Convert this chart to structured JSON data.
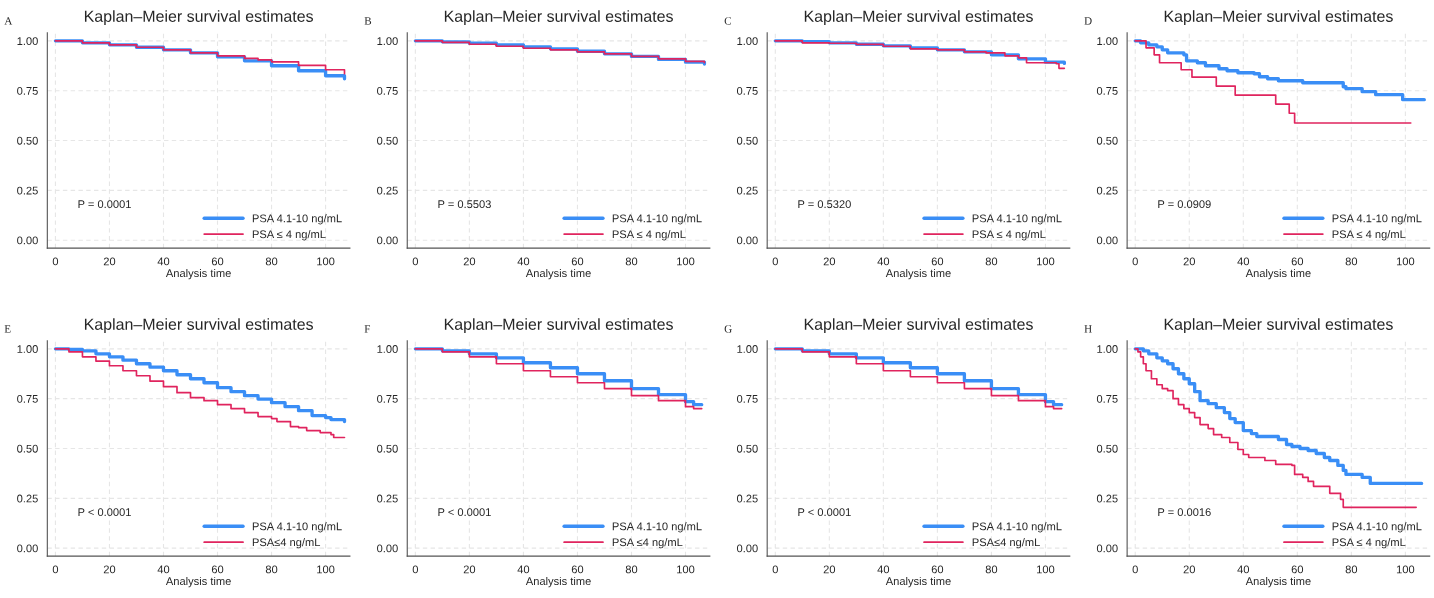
{
  "chart_data": [
    {
      "type": "step",
      "title": "Kaplan–Meier survival estimates",
      "xlabel": "Analysis time",
      "annotations": [
        "A",
        "P = 0.0001"
      ],
      "xlim": [
        -3,
        109
      ],
      "ylim": [
        -0.04,
        1.04
      ],
      "xticks": [
        0,
        20,
        40,
        60,
        80,
        100
      ],
      "yticks": [
        {
          "value": 0,
          "label": "0.00"
        },
        {
          "value": 0.25,
          "label": "0.25"
        },
        {
          "value": 0.5,
          "label": "0.50"
        },
        {
          "value": 0.75,
          "label": "0.75"
        },
        {
          "value": 1,
          "label": "1.00"
        }
      ],
      "grid": true,
      "legend": "bottom right",
      "series": [
        {
          "name": "PSA 4.1-10 ng/mL",
          "color": "#3a8ef6",
          "x": [
            0,
            10,
            20,
            30,
            40,
            50,
            60,
            70,
            80,
            90,
            100,
            107
          ],
          "values": [
            1,
            0.99,
            0.98,
            0.968,
            0.955,
            0.94,
            0.92,
            0.9,
            0.875,
            0.85,
            0.825,
            0.81
          ]
        },
        {
          "name": "PSA ≤ 4 ng/mL",
          "color": "#e0245e",
          "x": [
            0,
            10,
            20,
            30,
            40,
            50,
            60,
            70,
            75,
            80,
            90,
            100,
            107
          ],
          "values": [
            1,
            0.99,
            0.98,
            0.968,
            0.955,
            0.94,
            0.925,
            0.912,
            0.905,
            0.895,
            0.877,
            0.855,
            0.835
          ]
        }
      ]
    },
    {
      "type": "step",
      "title": "Kaplan–Meier survival estimates",
      "xlabel": "Analysis time",
      "annotations": [
        "B",
        "P = 0.5503"
      ],
      "xlim": [
        -3,
        109
      ],
      "ylim": [
        -0.04,
        1.04
      ],
      "xticks": [
        0,
        20,
        40,
        60,
        80,
        100
      ],
      "yticks": [
        {
          "value": 0,
          "label": "0.00"
        },
        {
          "value": 0.25,
          "label": "0.25"
        },
        {
          "value": 0.5,
          "label": "0.50"
        },
        {
          "value": 0.75,
          "label": "0.75"
        },
        {
          "value": 1,
          "label": "1.00"
        }
      ],
      "grid": true,
      "legend": "bottom right",
      "series": [
        {
          "name": "PSA 4.1-10 ng/mL",
          "color": "#3a8ef6",
          "x": [
            0,
            10,
            20,
            30,
            40,
            50,
            60,
            70,
            80,
            90,
            100,
            107
          ],
          "values": [
            1,
            0.995,
            0.988,
            0.98,
            0.97,
            0.96,
            0.948,
            0.935,
            0.922,
            0.907,
            0.893,
            0.884
          ]
        },
        {
          "name": "PSA ≤ 4 ng/mL",
          "color": "#e0245e",
          "x": [
            0,
            10,
            20,
            30,
            40,
            50,
            60,
            70,
            80,
            90,
            100,
            107
          ],
          "values": [
            1,
            0.992,
            0.983,
            0.973,
            0.963,
            0.955,
            0.945,
            0.935,
            0.922,
            0.91,
            0.897,
            0.89
          ]
        }
      ]
    },
    {
      "type": "step",
      "title": "Kaplan–Meier survival estimates",
      "xlabel": "Analysis time",
      "annotations": [
        "C",
        "P = 0.5320"
      ],
      "xlim": [
        -3,
        109
      ],
      "ylim": [
        -0.04,
        1.04
      ],
      "xticks": [
        0,
        20,
        40,
        60,
        80,
        100
      ],
      "yticks": [
        {
          "value": 0,
          "label": "0.00"
        },
        {
          "value": 0.25,
          "label": "0.25"
        },
        {
          "value": 0.5,
          "label": "0.50"
        },
        {
          "value": 0.75,
          "label": "0.75"
        },
        {
          "value": 1,
          "label": "1.00"
        }
      ],
      "grid": true,
      "legend": "bottom right",
      "series": [
        {
          "name": "PSA 4.1-10 ng/mL",
          "color": "#3a8ef6",
          "x": [
            0,
            10,
            20,
            30,
            40,
            50,
            60,
            70,
            80,
            90,
            100,
            107
          ],
          "values": [
            1,
            0.996,
            0.99,
            0.983,
            0.975,
            0.965,
            0.955,
            0.945,
            0.93,
            0.91,
            0.893,
            0.887
          ]
        },
        {
          "name": "PSA ≤ 4 ng/mL",
          "color": "#e0245e",
          "x": [
            0,
            10,
            20,
            30,
            40,
            50,
            60,
            70,
            78,
            85,
            90,
            93,
            100,
            104,
            105,
            107
          ],
          "values": [
            1,
            0.99,
            0.988,
            0.982,
            0.973,
            0.96,
            0.955,
            0.945,
            0.94,
            0.925,
            0.915,
            0.89,
            0.89,
            0.885,
            0.862,
            0.862
          ]
        }
      ]
    },
    {
      "type": "step",
      "title": "Kaplan–Meier survival estimates",
      "xlabel": "Analysis time",
      "annotations": [
        "D",
        "P = 0.0909"
      ],
      "xlim": [
        -3,
        109
      ],
      "ylim": [
        -0.04,
        1.04
      ],
      "xticks": [
        0,
        20,
        40,
        60,
        80,
        100
      ],
      "yticks": [
        {
          "value": 0,
          "label": "0.00"
        },
        {
          "value": 0.25,
          "label": "0.25"
        },
        {
          "value": 0.5,
          "label": "0.50"
        },
        {
          "value": 0.75,
          "label": "0.75"
        },
        {
          "value": 1,
          "label": "1.00"
        }
      ],
      "grid": true,
      "legend": "bottom right",
      "series": [
        {
          "name": "PSA 4.1-10 ng/mL",
          "color": "#3a8ef6",
          "x": [
            0,
            2,
            5,
            8,
            10,
            12,
            18,
            19,
            23,
            26,
            31,
            34,
            38,
            44,
            46,
            49,
            53,
            62,
            77,
            78,
            84,
            89,
            99,
            107
          ],
          "values": [
            1,
            0.99,
            0.98,
            0.97,
            0.955,
            0.94,
            0.93,
            0.9,
            0.89,
            0.875,
            0.86,
            0.85,
            0.84,
            0.835,
            0.82,
            0.81,
            0.8,
            0.79,
            0.77,
            0.76,
            0.745,
            0.73,
            0.705,
            0.705
          ]
        },
        {
          "name": "PSA ≤ 4 ng/mL",
          "color": "#e0245e",
          "x": [
            0,
            4,
            7,
            9,
            17,
            21,
            30,
            37,
            52,
            57,
            59,
            102
          ],
          "values": [
            1,
            0.965,
            0.93,
            0.89,
            0.855,
            0.818,
            0.773,
            0.728,
            0.683,
            0.637,
            0.588,
            0.588
          ]
        }
      ]
    },
    {
      "type": "step",
      "title": "Kaplan–Meier survival estimates",
      "xlabel": "Analysis time",
      "annotations": [
        "E",
        "P < 0.0001"
      ],
      "xlim": [
        -3,
        109
      ],
      "ylim": [
        -0.04,
        1.04
      ],
      "xticks": [
        0,
        20,
        40,
        60,
        80,
        100
      ],
      "yticks": [
        {
          "value": 0,
          "label": "0.00"
        },
        {
          "value": 0.25,
          "label": "0.25"
        },
        {
          "value": 0.5,
          "label": "0.50"
        },
        {
          "value": 0.75,
          "label": "0.75"
        },
        {
          "value": 1,
          "label": "1.00"
        }
      ],
      "grid": true,
      "legend": "bottom right",
      "series": [
        {
          "name": "PSA 4.1-10 ng/mL",
          "color": "#3a8ef6",
          "x": [
            0,
            5,
            10,
            15,
            20,
            25,
            30,
            35,
            40,
            45,
            50,
            55,
            60,
            65,
            70,
            75,
            80,
            85,
            90,
            95,
            100,
            102,
            105,
            107
          ],
          "values": [
            1,
            0.997,
            0.99,
            0.975,
            0.96,
            0.943,
            0.925,
            0.908,
            0.89,
            0.87,
            0.85,
            0.83,
            0.805,
            0.785,
            0.765,
            0.748,
            0.73,
            0.71,
            0.69,
            0.665,
            0.655,
            0.645,
            0.645,
            0.635
          ]
        },
        {
          "name": "PSA≤4 ng/mL",
          "color": "#e0245e",
          "x": [
            0,
            5,
            10,
            15,
            20,
            25,
            30,
            35,
            40,
            45,
            50,
            55,
            60,
            65,
            70,
            75,
            80,
            82,
            87,
            90,
            93,
            98,
            102,
            103,
            107
          ],
          "values": [
            1,
            0.985,
            0.96,
            0.938,
            0.915,
            0.89,
            0.865,
            0.838,
            0.81,
            0.78,
            0.755,
            0.74,
            0.72,
            0.7,
            0.68,
            0.66,
            0.65,
            0.635,
            0.61,
            0.605,
            0.59,
            0.58,
            0.57,
            0.555,
            0.555
          ]
        }
      ]
    },
    {
      "type": "step",
      "title": "Kaplan–Meier survival estimates",
      "xlabel": "Analysis time",
      "annotations": [
        "F",
        "P < 0.0001"
      ],
      "xlim": [
        -3,
        109
      ],
      "ylim": [
        -0.04,
        1.04
      ],
      "xticks": [
        0,
        20,
        40,
        60,
        80,
        100
      ],
      "yticks": [
        {
          "value": 0,
          "label": "0.00"
        },
        {
          "value": 0.25,
          "label": "0.25"
        },
        {
          "value": 0.5,
          "label": "0.50"
        },
        {
          "value": 0.75,
          "label": "0.75"
        },
        {
          "value": 1,
          "label": "1.00"
        }
      ],
      "grid": true,
      "legend": "bottom right",
      "series": [
        {
          "name": "PSA 4.1-10 ng/mL",
          "color": "#3a8ef6",
          "x": [
            0,
            10,
            20,
            30,
            40,
            50,
            60,
            70,
            80,
            90,
            100,
            103,
            106
          ],
          "values": [
            1,
            0.99,
            0.975,
            0.955,
            0.93,
            0.905,
            0.875,
            0.84,
            0.8,
            0.77,
            0.735,
            0.72,
            0.72
          ]
        },
        {
          "name": "PSA ≤4 ng/mL",
          "color": "#e0245e",
          "x": [
            0,
            10,
            20,
            30,
            40,
            50,
            60,
            70,
            80,
            90,
            100,
            103,
            106
          ],
          "values": [
            1,
            0.985,
            0.96,
            0.925,
            0.89,
            0.86,
            0.83,
            0.8,
            0.765,
            0.74,
            0.71,
            0.7,
            0.7
          ]
        }
      ]
    },
    {
      "type": "step",
      "title": "Kaplan–Meier survival estimates",
      "xlabel": "Analysis time",
      "annotations": [
        "G",
        "P < 0.0001"
      ],
      "xlim": [
        -3,
        109
      ],
      "ylim": [
        -0.04,
        1.04
      ],
      "xticks": [
        0,
        20,
        40,
        60,
        80,
        100
      ],
      "yticks": [
        {
          "value": 0,
          "label": "0.00"
        },
        {
          "value": 0.25,
          "label": "0.25"
        },
        {
          "value": 0.5,
          "label": "0.50"
        },
        {
          "value": 0.75,
          "label": "0.75"
        },
        {
          "value": 1,
          "label": "1.00"
        }
      ],
      "grid": true,
      "legend": "bottom right",
      "series": [
        {
          "name": "PSA 4.1-10 ng/mL",
          "color": "#3a8ef6",
          "x": [
            0,
            10,
            20,
            30,
            40,
            50,
            60,
            70,
            80,
            90,
            100,
            103,
            106
          ],
          "values": [
            1,
            0.99,
            0.975,
            0.955,
            0.93,
            0.905,
            0.875,
            0.84,
            0.8,
            0.77,
            0.735,
            0.72,
            0.72
          ]
        },
        {
          "name": "PSA≤4 ng/mL",
          "color": "#e0245e",
          "x": [
            0,
            10,
            20,
            30,
            40,
            50,
            60,
            70,
            80,
            90,
            100,
            103,
            106
          ],
          "values": [
            1,
            0.985,
            0.96,
            0.925,
            0.89,
            0.86,
            0.83,
            0.8,
            0.765,
            0.74,
            0.71,
            0.7,
            0.7
          ]
        }
      ]
    },
    {
      "type": "step",
      "title": "Kaplan–Meier survival estimates",
      "xlabel": "Analysis time",
      "annotations": [
        "H",
        "P = 0.0016"
      ],
      "xlim": [
        -3,
        109
      ],
      "ylim": [
        -0.04,
        1.04
      ],
      "xticks": [
        0,
        20,
        40,
        60,
        80,
        100
      ],
      "yticks": [
        {
          "value": 0,
          "label": "0.00"
        },
        {
          "value": 0.25,
          "label": "0.25"
        },
        {
          "value": 0.5,
          "label": "0.50"
        },
        {
          "value": 0.75,
          "label": "0.75"
        },
        {
          "value": 1,
          "label": "1.00"
        }
      ],
      "grid": true,
      "legend": "bottom right",
      "series": [
        {
          "name": "PSA 4.1-10 ng/mL",
          "color": "#3a8ef6",
          "x": [
            0,
            3,
            5,
            8,
            10,
            12,
            14,
            16,
            18,
            20,
            22,
            24,
            27,
            30,
            33,
            35,
            37,
            40,
            43,
            45,
            50,
            53,
            56,
            58,
            61,
            64,
            67,
            70,
            72,
            75,
            77,
            78,
            84,
            87,
            106
          ],
          "values": [
            1,
            0.99,
            0.975,
            0.955,
            0.94,
            0.925,
            0.9,
            0.875,
            0.85,
            0.825,
            0.785,
            0.74,
            0.725,
            0.705,
            0.68,
            0.65,
            0.63,
            0.59,
            0.575,
            0.56,
            0.56,
            0.545,
            0.52,
            0.51,
            0.5,
            0.49,
            0.475,
            0.455,
            0.44,
            0.415,
            0.39,
            0.37,
            0.355,
            0.325,
            0.325
          ]
        },
        {
          "name": "PSA ≤ 4 ng/mL",
          "color": "#e0245e",
          "x": [
            0,
            1,
            2,
            3,
            4,
            6,
            8,
            10,
            12,
            14,
            16,
            18,
            20,
            22,
            24,
            27,
            29,
            32,
            35,
            38,
            40,
            42,
            48,
            52,
            58,
            59,
            62,
            64,
            66,
            72,
            76,
            77,
            104
          ],
          "values": [
            1,
            0.985,
            0.96,
            0.925,
            0.89,
            0.85,
            0.82,
            0.8,
            0.79,
            0.75,
            0.72,
            0.7,
            0.68,
            0.655,
            0.62,
            0.6,
            0.57,
            0.555,
            0.53,
            0.495,
            0.47,
            0.455,
            0.44,
            0.42,
            0.415,
            0.37,
            0.355,
            0.335,
            0.31,
            0.275,
            0.245,
            0.205,
            0.205
          ]
        }
      ]
    }
  ]
}
